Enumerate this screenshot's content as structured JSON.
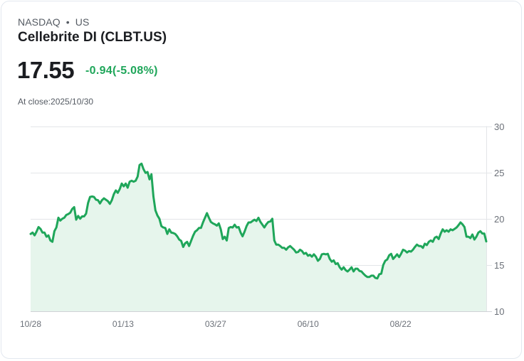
{
  "header": {
    "exchange": "NASDAQ",
    "separator": "•",
    "region": "US",
    "title": "Cellebrite DI (CLBT.US)",
    "price": "17.55",
    "change": "-0.94(-5.08%)",
    "at_close": "At close:2025/10/30"
  },
  "colors": {
    "line": "#1fa65a",
    "fill": "#e6f5ec",
    "grid": "#e3e5e8",
    "change": "#1fa65a"
  },
  "chart_data": {
    "type": "area",
    "title": "Cellebrite DI (CLBT.US)",
    "xlabel": "",
    "ylabel": "",
    "ylim": [
      10,
      30
    ],
    "yticks": [
      30,
      25,
      20,
      15,
      10
    ],
    "xtick_labels": [
      "10/28",
      "01/13",
      "03/27",
      "06/10",
      "08/22"
    ],
    "xtick_positions": [
      0.0,
      0.203,
      0.406,
      0.609,
      0.812
    ],
    "grid": true,
    "legend": null,
    "x_start": "10/28",
    "x_end": "2025/10/30",
    "values": [
      18.35,
      18.5,
      18.2,
      18.6,
      19.1,
      18.9,
      18.5,
      18.5,
      18.05,
      18.2,
      17.65,
      17.5,
      18.65,
      19.05,
      20.1,
      19.8,
      20.0,
      20.1,
      20.4,
      20.5,
      20.65,
      21.05,
      21.25,
      19.9,
      20.3,
      20.0,
      20.25,
      20.25,
      20.55,
      21.7,
      22.35,
      22.4,
      22.35,
      22.05,
      22.0,
      21.65,
      22.0,
      22.2,
      22.05,
      21.9,
      21.6,
      22.0,
      22.65,
      23.05,
      22.8,
      23.2,
      23.8,
      23.5,
      23.8,
      23.35,
      24.0,
      24.1,
      24.0,
      24.1,
      24.55,
      25.8,
      25.95,
      25.35,
      24.95,
      25.05,
      24.25,
      24.8,
      22.4,
      20.9,
      20.35,
      20.0,
      19.2,
      19.05,
      19.0,
      18.35,
      18.85,
      18.5,
      18.45,
      18.35,
      18.1,
      17.75,
      17.6,
      16.95,
      17.35,
      17.5,
      17.05,
      17.6,
      18.15,
      18.6,
      18.75,
      19.0,
      19.0,
      19.6,
      20.1,
      20.6,
      20.1,
      19.65,
      19.5,
      19.4,
      19.25,
      19.5,
      18.85,
      17.8,
      18.05,
      17.65,
      19.0,
      19.1,
      19.05,
      19.35,
      19.05,
      19.1,
      18.5,
      18.1,
      18.6,
      19.2,
      19.6,
      19.6,
      19.75,
      19.9,
      19.75,
      20.1,
      19.65,
      19.35,
      19.05,
      19.4,
      19.65,
      19.7,
      20.0,
      17.65,
      17.2,
      17.2,
      17.05,
      16.85,
      16.85,
      16.65,
      16.9,
      17.05,
      16.85,
      16.65,
      16.35,
      16.4,
      16.65,
      16.5,
      16.2,
      16.3,
      16.0,
      16.1,
      15.9,
      16.15,
      15.9,
      15.45,
      15.65,
      16.15,
      16.2,
      16.15,
      16.2,
      15.65,
      15.35,
      15.5,
      15.1,
      15.2,
      14.75,
      14.5,
      14.75,
      14.45,
      14.3,
      14.5,
      14.75,
      14.3,
      14.6,
      14.6,
      14.35,
      14.3,
      14.05,
      13.85,
      13.7,
      13.7,
      13.85,
      13.85,
      13.6,
      13.55,
      14.0,
      14.05,
      15.0,
      15.45,
      15.6,
      16.05,
      16.2,
      15.65,
      15.9,
      16.15,
      15.85,
      16.2,
      16.65,
      16.55,
      16.35,
      16.5,
      16.45,
      16.65,
      16.95,
      17.2,
      17.05,
      17.05,
      16.85,
      17.3,
      17.15,
      17.5,
      17.65,
      17.5,
      17.95,
      18.05,
      17.8,
      18.4,
      18.85,
      18.6,
      18.75,
      18.6,
      18.85,
      18.75,
      18.9,
      19.05,
      19.3,
      19.6,
      19.4,
      19.1,
      18.05,
      18.05,
      17.9,
      18.3,
      17.75,
      18.05,
      18.5,
      18.65,
      18.4,
      18.4,
      17.55
    ],
    "last_value": 17.55
  }
}
